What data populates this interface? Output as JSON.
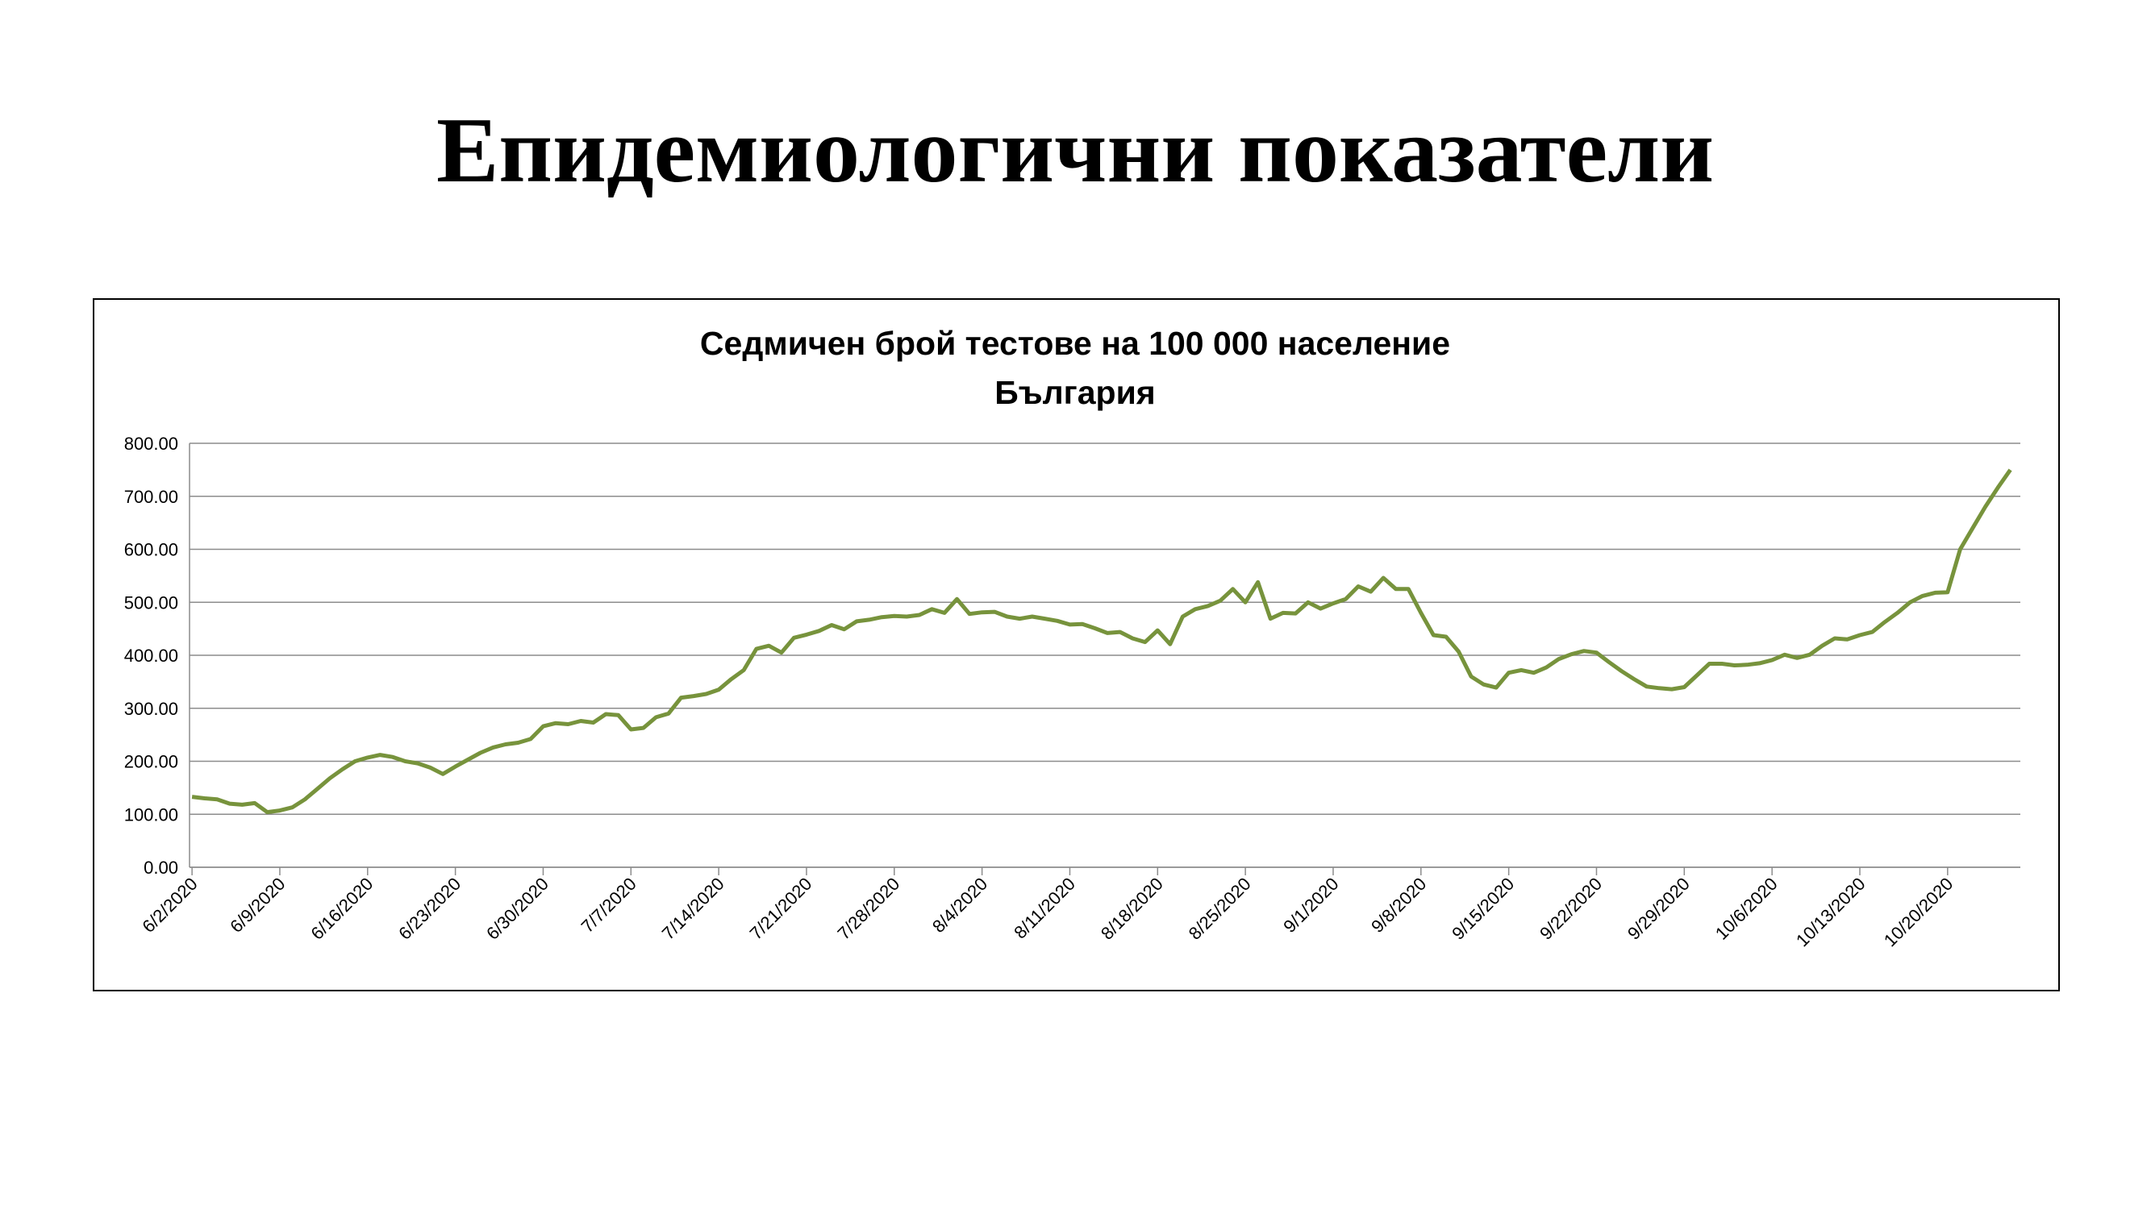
{
  "header": {
    "title": "Епидемиологични показатели"
  },
  "chart_data": {
    "type": "line",
    "title": "Седмичен брой тестове на 100 000 население",
    "subtitle": "България",
    "categories": [
      "6/2/2020",
      null,
      null,
      null,
      null,
      null,
      null,
      "6/9/2020",
      null,
      null,
      null,
      null,
      null,
      null,
      "6/16/2020",
      null,
      null,
      null,
      null,
      null,
      null,
      "6/23/2020",
      null,
      null,
      null,
      null,
      null,
      null,
      "6/30/2020",
      null,
      null,
      null,
      null,
      null,
      null,
      "7/7/2020",
      null,
      null,
      null,
      null,
      null,
      null,
      "7/14/2020",
      null,
      null,
      null,
      null,
      null,
      null,
      "7/21/2020",
      null,
      null,
      null,
      null,
      null,
      null,
      "7/28/2020",
      null,
      null,
      null,
      null,
      null,
      null,
      "8/4/2020",
      null,
      null,
      null,
      null,
      null,
      null,
      "8/11/2020",
      null,
      null,
      null,
      null,
      null,
      null,
      "8/18/2020",
      null,
      null,
      null,
      null,
      null,
      null,
      "8/25/2020",
      null,
      null,
      null,
      null,
      null,
      null,
      "9/1/2020",
      null,
      null,
      null,
      null,
      null,
      null,
      "9/8/2020",
      null,
      null,
      null,
      null,
      null,
      null,
      "9/15/2020",
      null,
      null,
      null,
      null,
      null,
      null,
      "9/22/2020",
      null,
      null,
      null,
      null,
      null,
      null,
      "9/29/2020",
      null,
      null,
      null,
      null,
      null,
      null,
      "10/6/2020",
      null,
      null,
      null,
      null,
      null,
      null,
      "10/13/2020",
      null,
      null,
      null,
      null,
      null,
      null,
      "10/20/2020",
      null,
      null,
      null,
      null,
      null
    ],
    "values": [
      133,
      130,
      128,
      120,
      118,
      121,
      104,
      107,
      113,
      128,
      148,
      168,
      185,
      200,
      207,
      212,
      208,
      200,
      196,
      188,
      176,
      190,
      203,
      216,
      226,
      232,
      235,
      242,
      266,
      272,
      270,
      276,
      273,
      289,
      287,
      260,
      263,
      283,
      290,
      320,
      323,
      327,
      335,
      355,
      372,
      412,
      418,
      405,
      433,
      439,
      446,
      457,
      449,
      464,
      467,
      472,
      474,
      473,
      476,
      487,
      480,
      506,
      478,
      481,
      482,
      473,
      469,
      473,
      469,
      465,
      458,
      459,
      451,
      442,
      444,
      432,
      425,
      447,
      421,
      473,
      487,
      493,
      503,
      525,
      500,
      538,
      469,
      480,
      479,
      500,
      488,
      498,
      506,
      530,
      520,
      546,
      525,
      525,
      480,
      438,
      435,
      407,
      360,
      345,
      339,
      367,
      372,
      367,
      377,
      393,
      402,
      408,
      405,
      387,
      370,
      355,
      341,
      338,
      336,
      340,
      362,
      384,
      384,
      381,
      382,
      385,
      391,
      401,
      395,
      401,
      418,
      432,
      430,
      438,
      444,
      463,
      480,
      500,
      512,
      518,
      519,
      600,
      640,
      680,
      716,
      750
    ],
    "color": "#77933c",
    "ylim": [
      0,
      800
    ],
    "yticks": [
      {
        "value": 0,
        "label": "0.00"
      },
      {
        "value": 100,
        "label": "100.00"
      },
      {
        "value": 200,
        "label": "200.00"
      },
      {
        "value": 300,
        "label": "300.00"
      },
      {
        "value": 400,
        "label": "400.00"
      },
      {
        "value": 500,
        "label": "500.00"
      },
      {
        "value": 600,
        "label": "600.00"
      },
      {
        "value": 700,
        "label": "700.00"
      },
      {
        "value": 800,
        "label": "800.00"
      }
    ],
    "grid": true
  }
}
